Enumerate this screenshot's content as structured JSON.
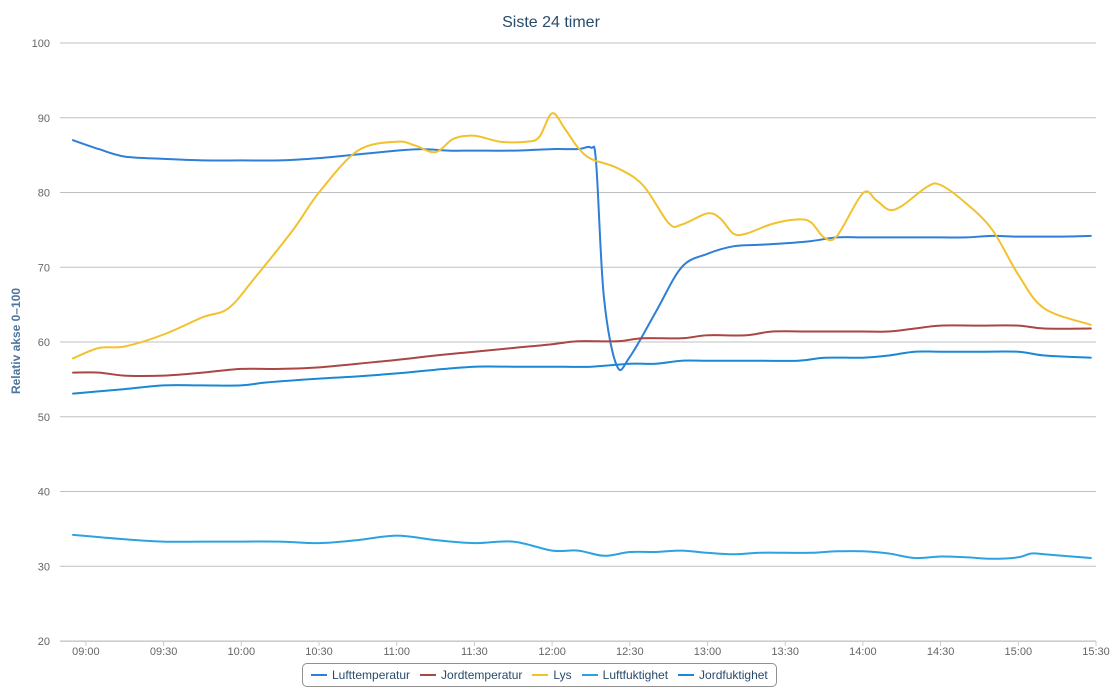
{
  "chart_data": {
    "type": "line",
    "title": "Siste 24 timer",
    "xlabel": "",
    "ylabel": "Relativ akse 0–100",
    "ylim": [
      20,
      100
    ],
    "yticks": [
      "20",
      "30",
      "40",
      "50",
      "60",
      "70",
      "80",
      "90",
      "100"
    ],
    "xlim": [
      "08:50",
      "15:30"
    ],
    "xticks": [
      "09:00",
      "09:30",
      "10:00",
      "10:30",
      "11:00",
      "11:30",
      "12:00",
      "12:30",
      "13:00",
      "13:30",
      "14:00",
      "14:30",
      "15:00",
      "15:30"
    ],
    "grid": true,
    "legend_position": "bottom-center",
    "series": [
      {
        "name": "Lufttemperatur",
        "color": "#2f7ed8",
        "x": [
          "08:55",
          "09:05",
          "09:15",
          "09:30",
          "09:45",
          "10:00",
          "10:15",
          "10:30",
          "10:45",
          "11:00",
          "11:10",
          "11:20",
          "11:30",
          "11:45",
          "12:00",
          "12:10",
          "12:15",
          "12:17",
          "12:20",
          "12:25",
          "12:30",
          "12:40",
          "12:50",
          "13:00",
          "13:10",
          "13:20",
          "13:30",
          "13:40",
          "13:50",
          "14:00",
          "14:10",
          "14:20",
          "14:30",
          "14:40",
          "14:50",
          "15:00",
          "15:15",
          "15:28"
        ],
        "y": [
          87,
          85.8,
          84.8,
          84.5,
          84.3,
          84.3,
          84.3,
          84.6,
          85.1,
          85.6,
          85.8,
          85.6,
          85.6,
          85.6,
          85.8,
          85.8,
          86,
          84,
          66,
          56.8,
          58,
          64,
          70,
          71.8,
          72.8,
          73,
          73.2,
          73.5,
          74,
          74,
          74,
          74,
          74,
          74,
          74.2,
          74.1,
          74.1,
          74.2
        ]
      },
      {
        "name": "Jordtemperatur",
        "color": "#aa4643",
        "x": [
          "08:55",
          "09:05",
          "09:15",
          "09:30",
          "09:45",
          "10:00",
          "10:15",
          "10:30",
          "10:45",
          "11:00",
          "11:15",
          "11:30",
          "11:45",
          "12:00",
          "12:10",
          "12:25",
          "12:35",
          "12:50",
          "13:00",
          "13:15",
          "13:25",
          "13:40",
          "14:00",
          "14:10",
          "14:20",
          "14:30",
          "14:45",
          "15:00",
          "15:10",
          "15:28"
        ],
        "y": [
          55.9,
          55.9,
          55.5,
          55.5,
          55.9,
          56.4,
          56.4,
          56.6,
          57.1,
          57.6,
          58.2,
          58.7,
          59.2,
          59.7,
          60.1,
          60.1,
          60.5,
          60.5,
          60.9,
          60.9,
          61.4,
          61.4,
          61.4,
          61.4,
          61.8,
          62.2,
          62.2,
          62.2,
          61.8,
          61.8
        ]
      },
      {
        "name": "Lys",
        "color": "#f2c12e",
        "x": [
          "08:55",
          "09:05",
          "09:15",
          "09:30",
          "09:45",
          "09:55",
          "10:05",
          "10:20",
          "10:30",
          "10:45",
          "11:00",
          "11:07",
          "11:15",
          "11:22",
          "11:30",
          "11:40",
          "11:50",
          "11:55",
          "12:00",
          "12:05",
          "12:10",
          "12:15",
          "12:25",
          "12:35",
          "12:45",
          "12:50",
          "13:00",
          "13:05",
          "13:10",
          "13:15",
          "13:25",
          "13:35",
          "13:40",
          "13:45",
          "13:50",
          "14:00",
          "14:05",
          "14:10",
          "14:15",
          "14:25",
          "14:30",
          "14:40",
          "14:50",
          "15:00",
          "15:10",
          "15:28"
        ],
        "y": [
          57.8,
          59.2,
          59.4,
          61,
          63.3,
          64.5,
          68.5,
          75,
          80,
          85.6,
          86.8,
          86.3,
          85.4,
          87.2,
          87.6,
          86.8,
          86.8,
          87.4,
          90.6,
          88.5,
          86,
          84.5,
          83.3,
          81,
          75.9,
          75.7,
          77.2,
          76.5,
          74.5,
          74.5,
          75.8,
          76.4,
          76,
          74,
          74.2,
          79.9,
          79,
          77.7,
          78.2,
          80.8,
          81,
          78.5,
          75,
          69,
          64.5,
          62.3
        ]
      },
      {
        "name": "Luftfuktighet",
        "color": "#2ba3e0",
        "x": [
          "08:55",
          "09:05",
          "09:15",
          "09:30",
          "09:45",
          "10:00",
          "10:15",
          "10:30",
          "10:45",
          "11:00",
          "11:15",
          "11:30",
          "11:45",
          "12:00",
          "12:10",
          "12:20",
          "12:30",
          "12:40",
          "12:50",
          "13:00",
          "13:10",
          "13:20",
          "13:30",
          "13:40",
          "13:50",
          "14:00",
          "14:10",
          "14:20",
          "14:30",
          "14:40",
          "14:50",
          "15:00",
          "15:05",
          "15:10",
          "15:28"
        ],
        "y": [
          34.2,
          33.9,
          33.6,
          33.3,
          33.3,
          33.3,
          33.3,
          33.1,
          33.5,
          34.1,
          33.5,
          33.1,
          33.3,
          32.1,
          32.1,
          31.4,
          31.9,
          31.9,
          32.1,
          31.8,
          31.6,
          31.8,
          31.8,
          31.8,
          32,
          32,
          31.7,
          31.1,
          31.3,
          31.2,
          31,
          31.2,
          31.7,
          31.6,
          31.1
        ]
      },
      {
        "name": "Jordfuktighet",
        "color": "#1a88d4",
        "x": [
          "08:55",
          "09:15",
          "09:30",
          "09:45",
          "10:00",
          "10:10",
          "10:30",
          "10:45",
          "11:00",
          "11:15",
          "11:30",
          "11:45",
          "12:00",
          "12:15",
          "12:30",
          "12:40",
          "12:50",
          "13:00",
          "13:15",
          "13:35",
          "13:45",
          "14:00",
          "14:10",
          "14:20",
          "14:30",
          "14:45",
          "15:00",
          "15:10",
          "15:28"
        ],
        "y": [
          53.1,
          53.7,
          54.2,
          54.2,
          54.2,
          54.6,
          55.1,
          55.4,
          55.8,
          56.3,
          56.7,
          56.7,
          56.7,
          56.7,
          57.1,
          57.1,
          57.5,
          57.5,
          57.5,
          57.5,
          57.9,
          57.9,
          58.2,
          58.7,
          58.7,
          58.7,
          58.7,
          58.2,
          57.9
        ]
      }
    ]
  }
}
